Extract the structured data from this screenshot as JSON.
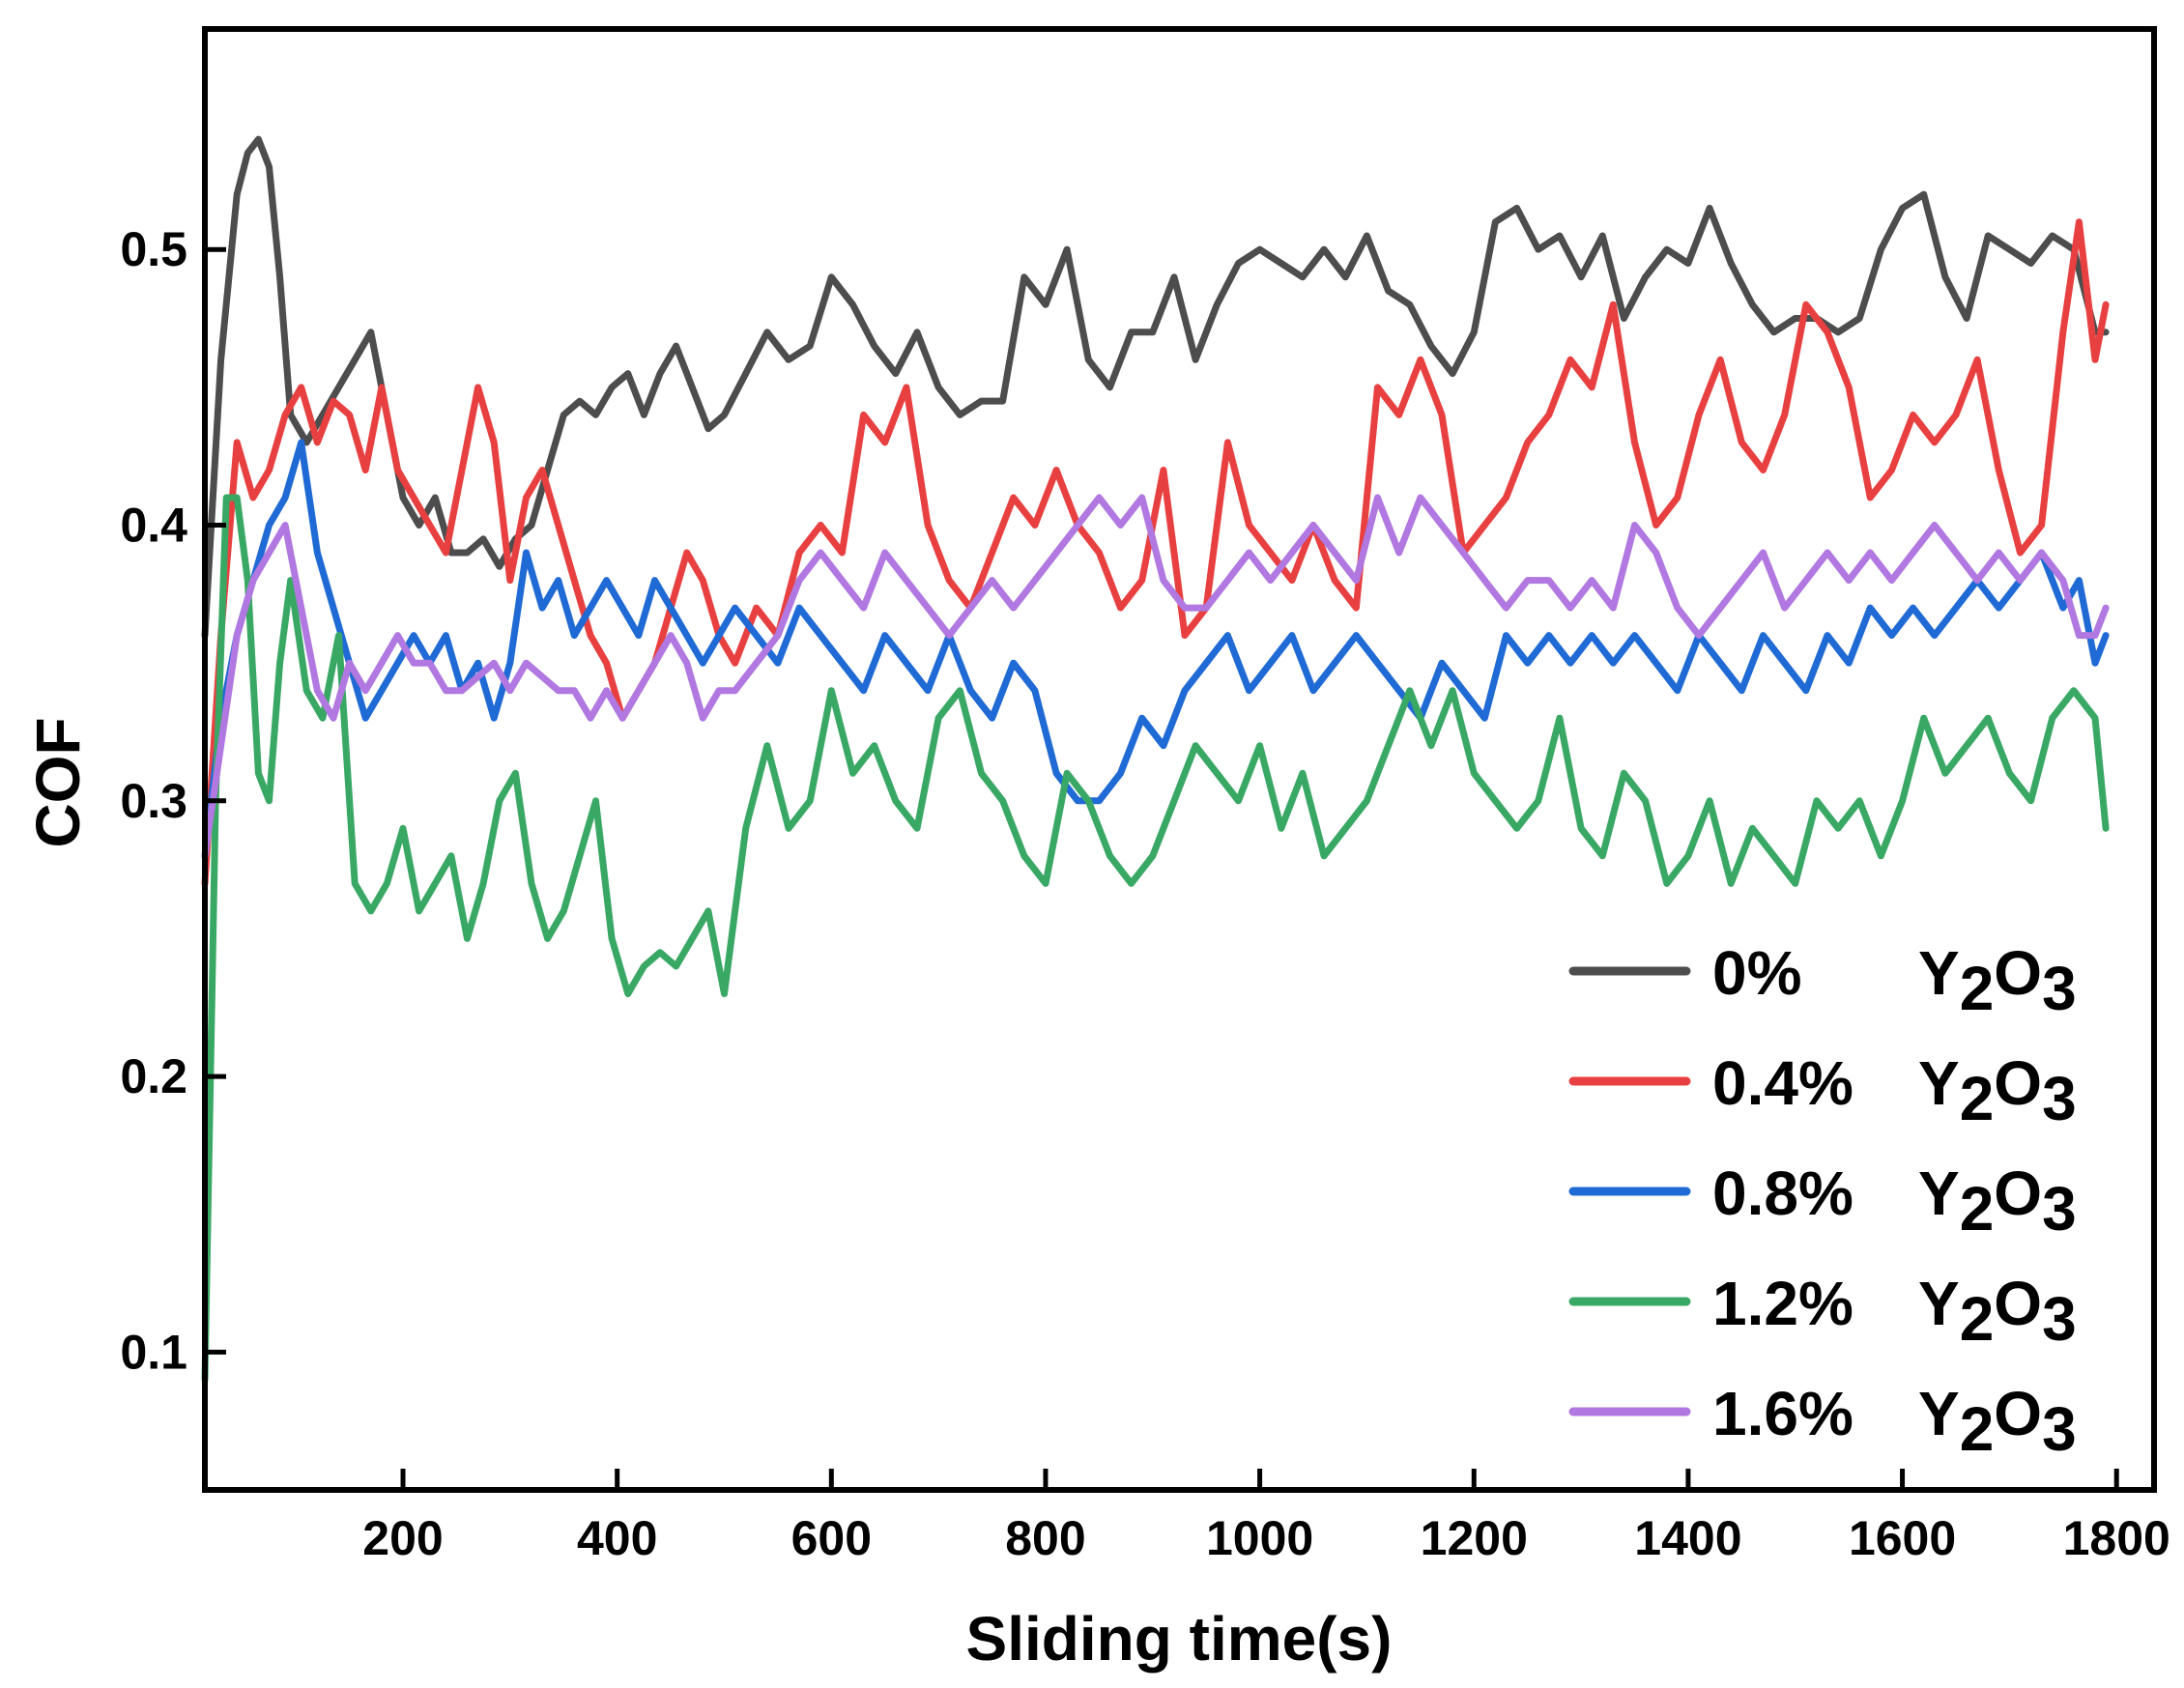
{
  "chart_data": {
    "type": "line",
    "title": "",
    "xlabel": "Sliding time(s)",
    "ylabel": "COF",
    "xlim": [
      15,
      1835
    ],
    "ylim": [
      0.05,
      0.58
    ],
    "xticks": [
      200,
      400,
      600,
      800,
      1000,
      1200,
      1400,
      1600,
      1800
    ],
    "xtick_labels": [
      "200",
      "400",
      "600",
      "800",
      "1000",
      "1200",
      "1400",
      "1600",
      "1800"
    ],
    "yticks": [
      0.1,
      0.2,
      0.3,
      0.4,
      0.5
    ],
    "ytick_labels": [
      "0.1",
      "0.2",
      "0.3",
      "0.4",
      "0.5"
    ],
    "legend_position": "bottom-right",
    "grid": false,
    "series": [
      {
        "name": "0% Y2O3",
        "label_main": "0%",
        "label_sub": "2",
        "label_sub2": "3",
        "color": "#4d4d4d",
        "x": [
          15,
          30,
          45,
          55,
          65,
          75,
          85,
          95,
          110,
          125,
          140,
          155,
          170,
          185,
          200,
          215,
          230,
          245,
          260,
          275,
          290,
          305,
          320,
          335,
          350,
          365,
          380,
          395,
          410,
          425,
          440,
          455,
          470,
          485,
          500,
          520,
          540,
          560,
          580,
          600,
          620,
          640,
          660,
          680,
          700,
          720,
          740,
          760,
          780,
          800,
          820,
          840,
          860,
          880,
          900,
          920,
          940,
          960,
          980,
          1000,
          1020,
          1040,
          1060,
          1080,
          1100,
          1120,
          1140,
          1160,
          1180,
          1200,
          1220,
          1240,
          1260,
          1280,
          1300,
          1320,
          1340,
          1360,
          1380,
          1400,
          1420,
          1440,
          1460,
          1480,
          1500,
          1520,
          1540,
          1560,
          1580,
          1600,
          1620,
          1640,
          1660,
          1680,
          1700,
          1720,
          1740,
          1760,
          1780,
          1790
        ],
        "values": [
          0.36,
          0.46,
          0.52,
          0.535,
          0.54,
          0.53,
          0.49,
          0.44,
          0.43,
          0.44,
          0.45,
          0.46,
          0.47,
          0.44,
          0.41,
          0.4,
          0.41,
          0.39,
          0.39,
          0.395,
          0.385,
          0.395,
          0.4,
          0.42,
          0.44,
          0.445,
          0.44,
          0.45,
          0.455,
          0.44,
          0.455,
          0.465,
          0.45,
          0.435,
          0.44,
          0.455,
          0.47,
          0.46,
          0.465,
          0.49,
          0.48,
          0.465,
          0.455,
          0.47,
          0.45,
          0.44,
          0.445,
          0.445,
          0.49,
          0.48,
          0.5,
          0.46,
          0.45,
          0.47,
          0.47,
          0.49,
          0.46,
          0.48,
          0.495,
          0.5,
          0.495,
          0.49,
          0.5,
          0.49,
          0.505,
          0.485,
          0.48,
          0.465,
          0.455,
          0.47,
          0.51,
          0.515,
          0.5,
          0.505,
          0.49,
          0.505,
          0.475,
          0.49,
          0.5,
          0.495,
          0.515,
          0.495,
          0.48,
          0.47,
          0.475,
          0.475,
          0.47,
          0.475,
          0.5,
          0.515,
          0.52,
          0.49,
          0.475,
          0.505,
          0.5,
          0.495,
          0.505,
          0.5,
          0.47,
          0.47
        ]
      },
      {
        "name": "0.4% Y2O3",
        "label_main": "0.4%",
        "label_sub": "2",
        "label_sub2": "3",
        "color": "#e84040",
        "x": [
          15,
          30,
          45,
          60,
          75,
          90,
          105,
          120,
          135,
          150,
          165,
          180,
          195,
          210,
          225,
          240,
          255,
          270,
          285,
          300,
          315,
          330,
          345,
          360,
          375,
          390,
          405,
          420,
          435,
          450,
          465,
          480,
          495,
          510,
          530,
          550,
          570,
          590,
          610,
          630,
          650,
          670,
          690,
          710,
          730,
          750,
          770,
          790,
          810,
          830,
          850,
          870,
          890,
          910,
          930,
          950,
          970,
          990,
          1010,
          1030,
          1050,
          1070,
          1090,
          1110,
          1130,
          1150,
          1170,
          1190,
          1210,
          1230,
          1250,
          1270,
          1290,
          1310,
          1330,
          1350,
          1370,
          1390,
          1410,
          1430,
          1450,
          1470,
          1490,
          1510,
          1530,
          1550,
          1570,
          1590,
          1610,
          1630,
          1650,
          1670,
          1690,
          1710,
          1730,
          1750,
          1765,
          1780,
          1790
        ],
        "values": [
          0.27,
          0.36,
          0.43,
          0.41,
          0.42,
          0.44,
          0.45,
          0.43,
          0.445,
          0.44,
          0.42,
          0.45,
          0.42,
          0.41,
          0.4,
          0.39,
          0.42,
          0.45,
          0.43,
          0.38,
          0.41,
          0.42,
          0.4,
          0.38,
          0.36,
          0.35,
          0.33,
          0.34,
          0.35,
          0.37,
          0.39,
          0.38,
          0.36,
          0.35,
          0.37,
          0.36,
          0.39,
          0.4,
          0.39,
          0.44,
          0.43,
          0.45,
          0.4,
          0.38,
          0.37,
          0.39,
          0.41,
          0.4,
          0.42,
          0.4,
          0.39,
          0.37,
          0.38,
          0.42,
          0.36,
          0.37,
          0.43,
          0.4,
          0.39,
          0.38,
          0.4,
          0.38,
          0.37,
          0.45,
          0.44,
          0.46,
          0.44,
          0.39,
          0.4,
          0.41,
          0.43,
          0.44,
          0.46,
          0.45,
          0.48,
          0.43,
          0.4,
          0.41,
          0.44,
          0.46,
          0.43,
          0.42,
          0.44,
          0.48,
          0.47,
          0.45,
          0.41,
          0.42,
          0.44,
          0.43,
          0.44,
          0.46,
          0.42,
          0.39,
          0.4,
          0.47,
          0.51,
          0.46,
          0.48
        ]
      },
      {
        "name": "0.8% Y2O3",
        "label_main": "0.8%",
        "label_sub": "2",
        "label_sub2": "3",
        "color": "#1f6ad4",
        "x": [
          15,
          30,
          45,
          60,
          75,
          90,
          105,
          120,
          135,
          150,
          165,
          180,
          195,
          210,
          225,
          240,
          255,
          270,
          285,
          300,
          315,
          330,
          345,
          360,
          375,
          390,
          405,
          420,
          435,
          450,
          465,
          480,
          495,
          510,
          530,
          550,
          570,
          590,
          610,
          630,
          650,
          670,
          690,
          710,
          730,
          750,
          770,
          790,
          810,
          830,
          850,
          870,
          890,
          910,
          930,
          950,
          970,
          990,
          1010,
          1030,
          1050,
          1070,
          1090,
          1110,
          1130,
          1150,
          1170,
          1190,
          1210,
          1230,
          1250,
          1270,
          1290,
          1310,
          1330,
          1350,
          1370,
          1390,
          1410,
          1430,
          1450,
          1470,
          1490,
          1510,
          1530,
          1550,
          1570,
          1590,
          1610,
          1630,
          1650,
          1670,
          1690,
          1710,
          1730,
          1750,
          1765,
          1780,
          1790
        ],
        "values": [
          0.28,
          0.33,
          0.36,
          0.38,
          0.4,
          0.41,
          0.43,
          0.39,
          0.37,
          0.35,
          0.33,
          0.34,
          0.35,
          0.36,
          0.35,
          0.36,
          0.34,
          0.35,
          0.33,
          0.35,
          0.39,
          0.37,
          0.38,
          0.36,
          0.37,
          0.38,
          0.37,
          0.36,
          0.38,
          0.37,
          0.36,
          0.35,
          0.36,
          0.37,
          0.36,
          0.35,
          0.37,
          0.36,
          0.35,
          0.34,
          0.36,
          0.35,
          0.34,
          0.36,
          0.34,
          0.33,
          0.35,
          0.34,
          0.31,
          0.3,
          0.3,
          0.31,
          0.33,
          0.32,
          0.34,
          0.35,
          0.36,
          0.34,
          0.35,
          0.36,
          0.34,
          0.35,
          0.36,
          0.35,
          0.34,
          0.33,
          0.35,
          0.34,
          0.33,
          0.36,
          0.35,
          0.36,
          0.35,
          0.36,
          0.35,
          0.36,
          0.35,
          0.34,
          0.36,
          0.35,
          0.34,
          0.36,
          0.35,
          0.34,
          0.36,
          0.35,
          0.37,
          0.36,
          0.37,
          0.36,
          0.37,
          0.38,
          0.37,
          0.38,
          0.39,
          0.37,
          0.38,
          0.35,
          0.36
        ]
      },
      {
        "name": "1.2% Y2O3",
        "label_main": "1.2%",
        "label_sub": "2",
        "label_sub2": "3",
        "color": "#3aa865",
        "x": [
          15,
          25,
          35,
          45,
          55,
          65,
          75,
          85,
          95,
          110,
          125,
          140,
          155,
          170,
          185,
          200,
          215,
          230,
          245,
          260,
          275,
          290,
          305,
          320,
          335,
          350,
          365,
          380,
          395,
          410,
          425,
          440,
          455,
          470,
          485,
          500,
          520,
          540,
          560,
          580,
          600,
          620,
          640,
          660,
          680,
          700,
          720,
          740,
          760,
          780,
          800,
          820,
          840,
          860,
          880,
          900,
          920,
          940,
          960,
          980,
          1000,
          1020,
          1040,
          1060,
          1080,
          1100,
          1120,
          1140,
          1160,
          1180,
          1200,
          1220,
          1240,
          1260,
          1280,
          1300,
          1320,
          1340,
          1360,
          1380,
          1400,
          1420,
          1440,
          1460,
          1480,
          1500,
          1520,
          1540,
          1560,
          1580,
          1600,
          1620,
          1640,
          1660,
          1680,
          1700,
          1720,
          1740,
          1760,
          1780,
          1790
        ],
        "values": [
          0.09,
          0.3,
          0.41,
          0.41,
          0.38,
          0.31,
          0.3,
          0.35,
          0.38,
          0.34,
          0.33,
          0.36,
          0.27,
          0.26,
          0.27,
          0.29,
          0.26,
          0.27,
          0.28,
          0.25,
          0.27,
          0.3,
          0.31,
          0.27,
          0.25,
          0.26,
          0.28,
          0.3,
          0.25,
          0.23,
          0.24,
          0.245,
          0.24,
          0.25,
          0.26,
          0.23,
          0.29,
          0.32,
          0.29,
          0.3,
          0.34,
          0.31,
          0.32,
          0.3,
          0.29,
          0.33,
          0.34,
          0.31,
          0.3,
          0.28,
          0.27,
          0.31,
          0.3,
          0.28,
          0.27,
          0.28,
          0.3,
          0.32,
          0.31,
          0.3,
          0.32,
          0.29,
          0.31,
          0.28,
          0.29,
          0.3,
          0.32,
          0.34,
          0.32,
          0.34,
          0.31,
          0.3,
          0.29,
          0.3,
          0.33,
          0.29,
          0.28,
          0.31,
          0.3,
          0.27,
          0.28,
          0.3,
          0.27,
          0.29,
          0.28,
          0.27,
          0.3,
          0.29,
          0.3,
          0.28,
          0.3,
          0.33,
          0.31,
          0.32,
          0.33,
          0.31,
          0.3,
          0.33,
          0.34,
          0.33,
          0.29
        ]
      },
      {
        "name": "1.6% Y2O3",
        "label_main": "1.6%",
        "label_sub": "2",
        "label_sub2": "3",
        "color": "#b078e0",
        "x": [
          15,
          30,
          45,
          60,
          75,
          90,
          105,
          120,
          135,
          150,
          165,
          180,
          195,
          210,
          225,
          240,
          255,
          270,
          285,
          300,
          315,
          330,
          345,
          360,
          375,
          390,
          405,
          420,
          435,
          450,
          465,
          480,
          495,
          510,
          530,
          550,
          570,
          590,
          610,
          630,
          650,
          670,
          690,
          710,
          730,
          750,
          770,
          790,
          810,
          830,
          850,
          870,
          890,
          910,
          930,
          950,
          970,
          990,
          1010,
          1030,
          1050,
          1070,
          1090,
          1110,
          1130,
          1150,
          1170,
          1190,
          1210,
          1230,
          1250,
          1270,
          1290,
          1310,
          1330,
          1350,
          1370,
          1390,
          1410,
          1430,
          1450,
          1470,
          1490,
          1510,
          1530,
          1550,
          1570,
          1590,
          1610,
          1630,
          1650,
          1670,
          1690,
          1710,
          1730,
          1750,
          1765,
          1780,
          1790
        ],
        "values": [
          0.28,
          0.32,
          0.36,
          0.38,
          0.39,
          0.4,
          0.37,
          0.34,
          0.33,
          0.35,
          0.34,
          0.35,
          0.36,
          0.35,
          0.35,
          0.34,
          0.34,
          0.345,
          0.35,
          0.34,
          0.35,
          0.345,
          0.34,
          0.34,
          0.33,
          0.34,
          0.33,
          0.34,
          0.35,
          0.36,
          0.35,
          0.33,
          0.34,
          0.34,
          0.35,
          0.36,
          0.38,
          0.39,
          0.38,
          0.37,
          0.39,
          0.38,
          0.37,
          0.36,
          0.37,
          0.38,
          0.37,
          0.38,
          0.39,
          0.4,
          0.41,
          0.4,
          0.41,
          0.38,
          0.37,
          0.37,
          0.38,
          0.39,
          0.38,
          0.39,
          0.4,
          0.39,
          0.38,
          0.41,
          0.39,
          0.41,
          0.4,
          0.39,
          0.38,
          0.37,
          0.38,
          0.38,
          0.37,
          0.38,
          0.37,
          0.4,
          0.39,
          0.37,
          0.36,
          0.37,
          0.38,
          0.39,
          0.37,
          0.38,
          0.39,
          0.38,
          0.39,
          0.38,
          0.39,
          0.4,
          0.39,
          0.38,
          0.39,
          0.38,
          0.39,
          0.38,
          0.36,
          0.36,
          0.37
        ]
      }
    ]
  }
}
